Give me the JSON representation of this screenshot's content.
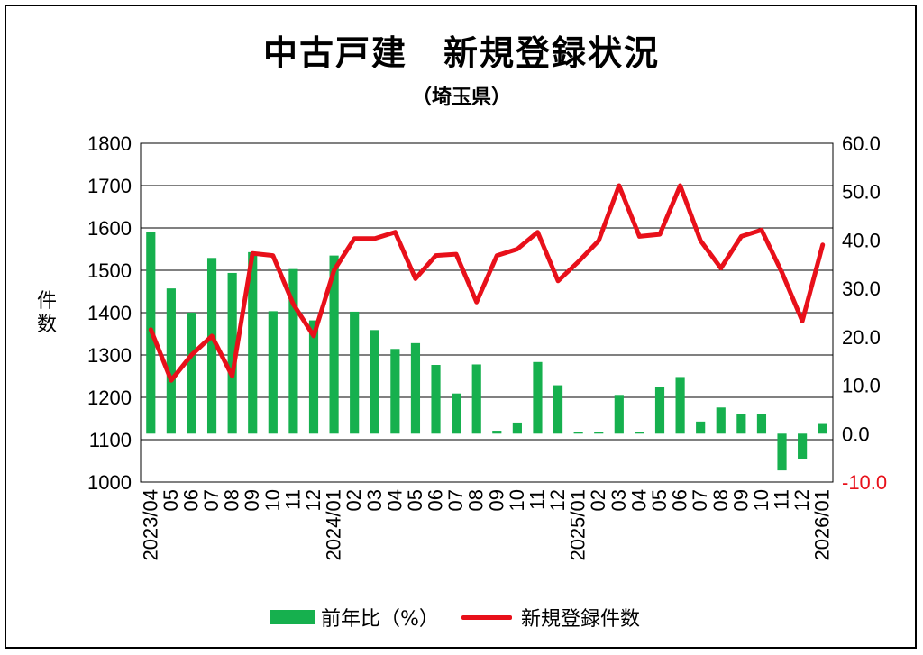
{
  "title": "中古戸建　新規登録状況",
  "subtitle": "（埼玉県）",
  "colors": {
    "bar": "#16b04e",
    "line": "#e8101a",
    "grid": "#000000",
    "negative_tick": "#e8101a"
  },
  "chart_data": {
    "type": "bar+line",
    "title": "中古戸建　新規登録状況",
    "subtitle": "（埼玉県）",
    "ylabel": "件数",
    "ylabel_chars": [
      "件",
      "数"
    ],
    "left_axis": {
      "min": 1000,
      "max": 1800,
      "ticks": [
        "1800",
        "1700",
        "1600",
        "1500",
        "1400",
        "1300",
        "1200",
        "1100",
        "1000"
      ]
    },
    "right_axis": {
      "min": -10,
      "max": 60,
      "ticks": [
        "60.0",
        "50.0",
        "40.0",
        "30.0",
        "20.0",
        "10.0",
        "0.0",
        "-10.0"
      ]
    },
    "grid": true,
    "legend_position": "bottom",
    "categories": [
      "2023/04",
      "05",
      "06",
      "07",
      "08",
      "09",
      "10",
      "11",
      "12",
      "2024/01",
      "02",
      "03",
      "04",
      "05",
      "06",
      "07",
      "08",
      "09",
      "10",
      "11",
      "12",
      "2025/01",
      "02",
      "03",
      "04",
      "05",
      "06",
      "07",
      "08",
      "09",
      "10",
      "11",
      "12",
      "2026/01"
    ],
    "series": [
      {
        "name": "前年比（%）",
        "type": "bar",
        "axis": "right",
        "values": [
          41.7,
          30.0,
          25.0,
          36.3,
          33.2,
          37.5,
          25.3,
          34.0,
          23.4,
          36.8,
          25.2,
          21.4,
          17.5,
          18.7,
          14.2,
          8.3,
          14.3,
          0.6,
          2.3,
          14.8,
          10.0,
          0.3,
          0.3,
          8.0,
          0.4,
          9.6,
          11.7,
          2.5,
          5.4,
          4.1,
          4.0,
          -7.6,
          -5.3,
          2.0
        ]
      },
      {
        "name": "新規登録件数",
        "type": "line",
        "axis": "left",
        "values": [
          1360,
          1240,
          1300,
          1345,
          1250,
          1540,
          1535,
          1420,
          1345,
          1500,
          1575,
          1575,
          1590,
          1480,
          1535,
          1538,
          1425,
          1535,
          1550,
          1590,
          1475,
          1520,
          1570,
          1700,
          1580,
          1585,
          1700,
          1570,
          1505,
          1580,
          1595,
          1495,
          1380,
          1560
        ]
      }
    ]
  }
}
